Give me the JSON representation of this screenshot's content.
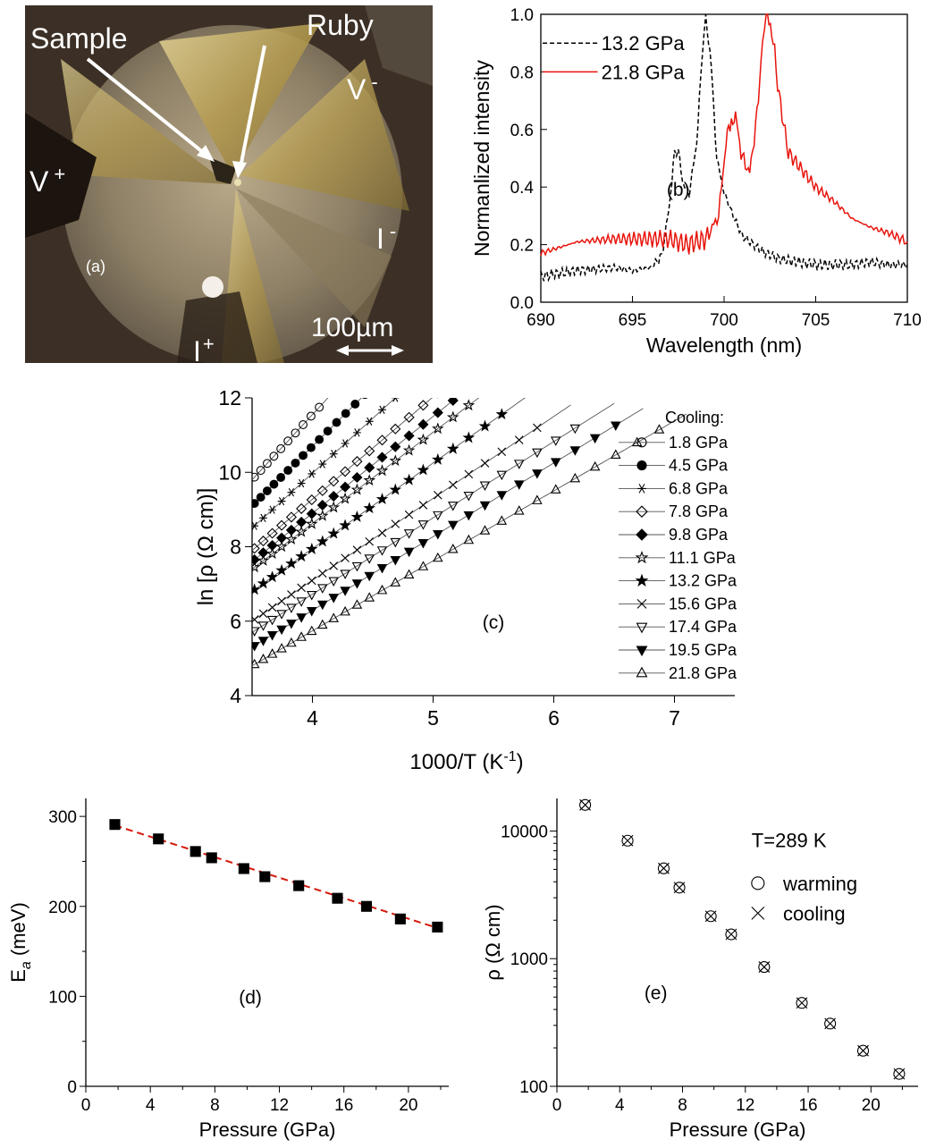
{
  "colors": {
    "black": "#000000",
    "red": "#e8140c",
    "fit": "#d41b10",
    "photo_bg": "#3a2e24",
    "gold": "#c9b36a"
  },
  "panel_a": {
    "letter": "(a)",
    "labels": {
      "sample": "Sample",
      "ruby": "Ruby",
      "v_plus": "V",
      "v_minus": "V",
      "i_plus": "I",
      "i_minus": "I",
      "plus": "+",
      "minus": "-",
      "scale": "100µm"
    }
  },
  "chart_data": [
    {
      "panel": "(b)",
      "type": "line",
      "xlabel": "Wavelength (nm)",
      "ylabel": "Normanlized intensity",
      "xlim": [
        690,
        710
      ],
      "ylim": [
        0.0,
        1.0
      ],
      "xticks": [
        "690",
        "695",
        "700",
        "705",
        "710"
      ],
      "yticks": [
        "0.0",
        "0.2",
        "0.4",
        "0.6",
        "0.8",
        "1.0"
      ],
      "series": [
        {
          "name": "13.2 GPa",
          "color": "#000000",
          "style": "dashed",
          "x": [
            690,
            692,
            694,
            695,
            696,
            696.6,
            697,
            697.3,
            697.5,
            697.8,
            698.1,
            698.5,
            698.8,
            699.0,
            699.3,
            699.6,
            700,
            700.5,
            701,
            702,
            703,
            704,
            705,
            706,
            707,
            708,
            709,
            710
          ],
          "y": [
            0.09,
            0.11,
            0.12,
            0.11,
            0.12,
            0.16,
            0.33,
            0.52,
            0.53,
            0.4,
            0.38,
            0.55,
            0.85,
            1.0,
            0.82,
            0.5,
            0.38,
            0.3,
            0.23,
            0.18,
            0.15,
            0.14,
            0.13,
            0.13,
            0.13,
            0.14,
            0.13,
            0.13
          ]
        },
        {
          "name": "21.8 GPa",
          "color": "#e8140c",
          "style": "solid",
          "x": [
            690,
            692,
            694,
            696,
            697,
            698,
            699,
            699.7,
            700.1,
            700.4,
            700.7,
            701,
            701.4,
            701.8,
            702.1,
            702.3,
            702.6,
            703,
            703.5,
            704,
            705,
            706,
            707,
            708,
            709,
            710
          ],
          "y": [
            0.17,
            0.21,
            0.22,
            0.22,
            0.22,
            0.2,
            0.22,
            0.3,
            0.55,
            0.64,
            0.62,
            0.5,
            0.45,
            0.65,
            0.92,
            1.0,
            0.95,
            0.72,
            0.52,
            0.48,
            0.4,
            0.35,
            0.29,
            0.26,
            0.24,
            0.21
          ]
        }
      ]
    },
    {
      "panel": "(c)",
      "type": "scatter",
      "xlabel": "1000/T (K",
      "xlabel_sup": "-1",
      "xlabel_end": ")",
      "ylabel": "ln [ρ (Ω cm)]",
      "xlim": [
        3.5,
        7.5
      ],
      "ylim": [
        4,
        12
      ],
      "xticks": [
        "4",
        "5",
        "6",
        "7"
      ],
      "yticks": [
        "4",
        "6",
        "8",
        "10",
        "12"
      ],
      "legend_title": "Cooling:",
      "legend_position": "right",
      "series": [
        {
          "name": "1.8 GPa",
          "marker": "circle",
          "filled": false,
          "y0": 9.8,
          "slope": 3.5,
          "xmax": 4.1
        },
        {
          "name": "4.5 GPa",
          "marker": "circle",
          "filled": true,
          "y0": 9.1,
          "slope": 3.2,
          "xmax": 4.45
        },
        {
          "name": "6.8 GPa",
          "marker": "asterisk",
          "filled": false,
          "y0": 8.5,
          "slope": 2.95,
          "xmax": 4.85
        },
        {
          "name": "7.8 GPa",
          "marker": "diamond",
          "filled": false,
          "y0": 7.9,
          "slope": 2.75,
          "xmax": 5.05
        },
        {
          "name": "9.8 GPa",
          "marker": "diamond",
          "filled": true,
          "y0": 7.6,
          "slope": 2.6,
          "xmax": 5.18
        },
        {
          "name": "11.1 GPa",
          "marker": "star",
          "filled": false,
          "y0": 7.4,
          "slope": 2.45,
          "xmax": 5.4
        },
        {
          "name": "13.2 GPa",
          "marker": "star",
          "filled": true,
          "y0": 6.8,
          "slope": 2.3,
          "xmax": 5.65
        },
        {
          "name": "15.6 GPa",
          "marker": "cross",
          "filled": false,
          "y0": 6.0,
          "slope": 2.2,
          "xmax": 5.95
        },
        {
          "name": "17.4 GPa",
          "marker": "triangle-down",
          "filled": false,
          "y0": 5.7,
          "slope": 2.05,
          "xmax": 6.3
        },
        {
          "name": "19.5 GPa",
          "marker": "triangle-down",
          "filled": true,
          "y0": 5.3,
          "slope": 1.98,
          "xmax": 6.55
        },
        {
          "name": "21.8 GPa",
          "marker": "triangle-up",
          "filled": false,
          "y0": 4.8,
          "slope": 1.88,
          "xmax": 6.9
        }
      ]
    },
    {
      "panel": "(d)",
      "type": "scatter",
      "xlabel": "Pressure (GPa)",
      "ylabel": "E",
      "ylabel_sub": "a",
      "ylabel_end": " (meV)",
      "xlim": [
        0,
        22.5
      ],
      "ylim": [
        0,
        320
      ],
      "xticks": [
        "0",
        "4",
        "8",
        "12",
        "16",
        "20"
      ],
      "yticks": [
        "0",
        "100",
        "200",
        "300"
      ],
      "series": [
        {
          "name": "",
          "marker": "square",
          "filled": true,
          "x": [
            1.8,
            4.5,
            6.8,
            7.8,
            9.8,
            11.1,
            13.2,
            15.6,
            17.4,
            19.5,
            21.8
          ],
          "y": [
            291,
            275,
            261,
            254,
            242,
            233,
            223,
            209,
            200,
            186,
            177
          ]
        }
      ],
      "fit": {
        "style": "dashed",
        "color": "#d41b10",
        "x": [
          1.8,
          21.8
        ],
        "y": [
          290,
          176
        ]
      }
    },
    {
      "panel": "(e)",
      "type": "scatter",
      "xlabel": "Pressure (GPa)",
      "ylabel": "ρ (Ω cm)",
      "yscale": "log",
      "xlim": [
        0,
        23
      ],
      "ylim": [
        100,
        18000
      ],
      "xticks": [
        "0",
        "4",
        "8",
        "12",
        "16",
        "20"
      ],
      "yticks": [
        "100",
        "1000",
        "10000"
      ],
      "annotation": "T=289 K",
      "legend_position": "top-right",
      "series": [
        {
          "name": "warming",
          "marker": "circle",
          "x": [
            1.8,
            4.5,
            6.8,
            7.8,
            9.8,
            11.1,
            13.2,
            15.6,
            17.4,
            19.5,
            21.8
          ],
          "y": [
            16000,
            8400,
            5100,
            3600,
            2150,
            1550,
            860,
            450,
            310,
            190,
            125
          ]
        },
        {
          "name": "cooling",
          "marker": "cross",
          "x": [
            1.8,
            4.5,
            6.8,
            7.8,
            9.8,
            11.1,
            13.2,
            15.6,
            17.4,
            19.5,
            21.8
          ],
          "y": [
            16000,
            8400,
            5100,
            3600,
            2150,
            1550,
            860,
            450,
            310,
            190,
            125
          ]
        }
      ]
    }
  ]
}
